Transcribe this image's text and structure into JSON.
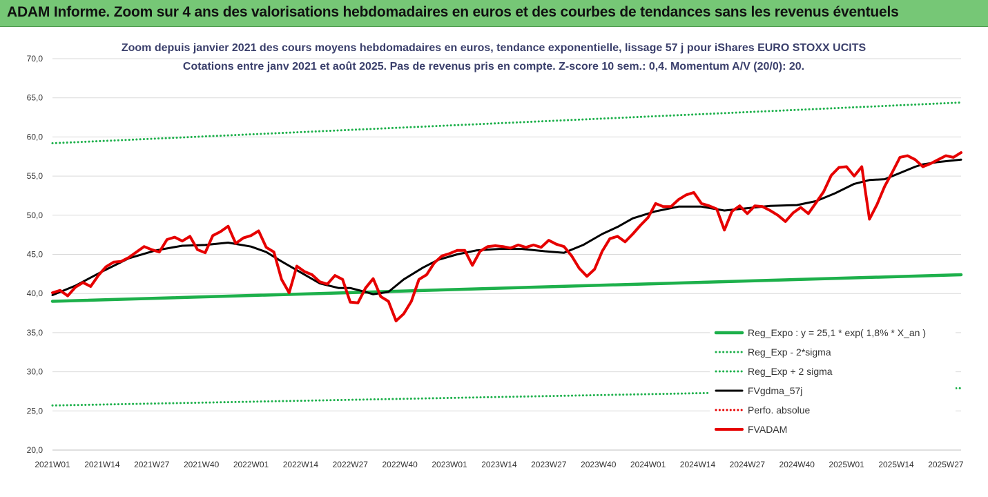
{
  "banner": {
    "title": "ADAM Informe. Zoom sur 4 ans des valorisations hebdomadaires en euros et des courbes de tendances sans les revenus éventuels"
  },
  "chart_data": {
    "type": "line",
    "title": "Zoom depuis janvier 2021 des cours moyens hebdomadaires en euros, tendance exponentielle, lissage 57 j pour iShares EURO STOXX UCITS",
    "subtitle": "Cotations entre janv 2021 et août 2025. Pas de revenus pris en compte. Z-score 10 sem.: 0,4. Momentum A/V (20/0): 20.",
    "ylim": [
      20,
      70
    ],
    "grid": true,
    "legend_position": "bottom-right",
    "y_ticks": [
      "20,0",
      "25,0",
      "30,0",
      "35,0",
      "40,0",
      "45,0",
      "50,0",
      "55,0",
      "60,0",
      "65,0",
      "70,0"
    ],
    "x_ticks": [
      "2021W01",
      "2021W14",
      "2021W27",
      "2021W40",
      "2022W01",
      "2022W14",
      "2022W27",
      "2022W40",
      "2023W01",
      "2023W14",
      "2023W27",
      "2023W40",
      "2024W01",
      "2024W14",
      "2024W27",
      "2024W40",
      "2025W01",
      "2025W14",
      "2025W27"
    ],
    "x_count": 239,
    "series": [
      {
        "name": "Reg_Expo : y = 25,1 * exp( 1,8% *  X_an )",
        "style": "solid-thick",
        "color": "#1db04b",
        "x": [
          0,
          238
        ],
        "values": [
          39.0,
          42.4
        ]
      },
      {
        "name": "Reg_Exp - 2*sigma",
        "style": "dotted",
        "color": "#1db04b",
        "x": [
          0,
          238
        ],
        "values": [
          25.7,
          27.9
        ]
      },
      {
        "name": "Reg_Exp + 2 sigma",
        "style": "dotted",
        "color": "#1db04b",
        "x": [
          0,
          238
        ],
        "values": [
          59.2,
          64.4
        ]
      },
      {
        "name": "FVgdma_57j",
        "style": "solid",
        "color": "#000000",
        "x": [
          0,
          6,
          13,
          20,
          27,
          34,
          40,
          46,
          52,
          56,
          60,
          65,
          70,
          75,
          78,
          82,
          84,
          88,
          92,
          97,
          101,
          106,
          111,
          117,
          123,
          129,
          134,
          139,
          144,
          148,
          152,
          158,
          164,
          170,
          176,
          182,
          188,
          195,
          200,
          205,
          210,
          214,
          218,
          222,
          226,
          228,
          232,
          236,
          238
        ],
        "values": [
          39.8,
          41.0,
          42.8,
          44.5,
          45.5,
          46.1,
          46.2,
          46.5,
          46.0,
          45.3,
          44.1,
          42.7,
          41.3,
          40.7,
          40.7,
          40.2,
          39.9,
          40.2,
          41.8,
          43.3,
          44.3,
          45.0,
          45.5,
          45.7,
          45.7,
          45.4,
          45.2,
          46.2,
          47.6,
          48.5,
          49.6,
          50.5,
          51.1,
          51.1,
          50.6,
          50.9,
          51.2,
          51.3,
          51.8,
          52.8,
          54.0,
          54.5,
          54.6,
          55.4,
          56.2,
          56.5,
          56.8,
          57.0,
          57.1
        ]
      },
      {
        "name": "Perfo. absolue",
        "style": "dotted",
        "color": "#e60000",
        "x": [],
        "values": []
      },
      {
        "name": "FVADAM",
        "style": "solid-thick",
        "color": "#e60000",
        "x": [
          0,
          2,
          4,
          6,
          8,
          10,
          12,
          14,
          16,
          18,
          20,
          22,
          24,
          26,
          28,
          30,
          32,
          34,
          36,
          38,
          40,
          42,
          44,
          46,
          48,
          50,
          52,
          54,
          56,
          58,
          60,
          62,
          64,
          66,
          68,
          70,
          72,
          74,
          76,
          78,
          80,
          82,
          84,
          86,
          88,
          90,
          92,
          94,
          96,
          98,
          100,
          102,
          104,
          106,
          108,
          110,
          112,
          114,
          116,
          118,
          120,
          122,
          124,
          126,
          128,
          130,
          132,
          134,
          136,
          138,
          140,
          142,
          144,
          146,
          148,
          150,
          152,
          154,
          156,
          158,
          160,
          162,
          164,
          166,
          168,
          170,
          172,
          174,
          176,
          178,
          180,
          182,
          184,
          186,
          188,
          190,
          192,
          194,
          196,
          198,
          200,
          202,
          204,
          206,
          208,
          210,
          212,
          214,
          216,
          218,
          220,
          222,
          224,
          226,
          228,
          230,
          232,
          234,
          236,
          238
        ],
        "values": [
          40.1,
          40.4,
          39.7,
          40.8,
          41.4,
          40.9,
          42.3,
          43.4,
          44.0,
          44.1,
          44.6,
          45.3,
          46.0,
          45.6,
          45.3,
          46.9,
          47.2,
          46.7,
          47.3,
          45.6,
          45.2,
          47.4,
          47.9,
          48.6,
          46.4,
          47.1,
          47.4,
          48.0,
          45.9,
          45.3,
          41.8,
          40.1,
          43.5,
          42.8,
          42.4,
          41.5,
          41.2,
          42.3,
          41.8,
          38.9,
          38.8,
          40.7,
          41.9,
          39.6,
          39.0,
          36.5,
          37.4,
          39.0,
          41.8,
          42.4,
          43.9,
          44.8,
          45.1,
          45.5,
          45.5,
          43.6,
          45.4,
          46.0,
          46.1,
          46.0,
          45.8,
          46.2,
          45.9,
          46.2,
          45.9,
          46.8,
          46.3,
          46.0,
          44.8,
          43.2,
          42.2,
          43.1,
          45.4,
          47.0,
          47.3,
          46.6,
          47.6,
          48.7,
          49.7,
          51.5,
          51.1,
          51.1,
          52.0,
          52.6,
          52.9,
          51.5,
          51.2,
          50.8,
          48.1,
          50.5,
          51.2,
          50.2,
          51.2,
          51.1,
          50.6,
          50.0,
          49.2,
          50.3,
          51.0,
          50.2,
          51.6,
          53.0,
          55.1,
          56.1,
          56.2,
          55.0,
          56.2,
          49.5,
          51.4,
          53.7,
          55.5,
          57.4,
          57.6,
          57.1,
          56.2,
          56.6,
          57.1,
          57.6,
          57.4,
          58.0
        ]
      }
    ]
  }
}
